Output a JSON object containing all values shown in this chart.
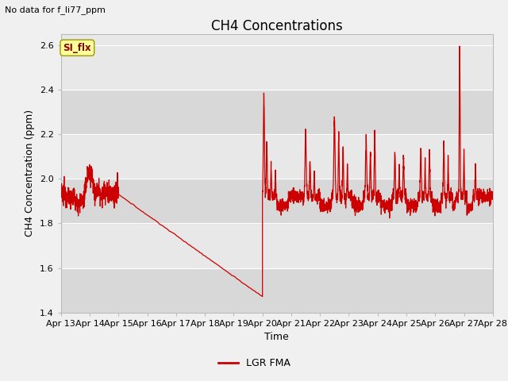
{
  "title": "CH4 Concentrations",
  "no_data_label": "No data for f_li77_ppm",
  "si_flx_label": "SI_flx",
  "xlabel": "Time",
  "ylabel": "CH4 Concentration (ppm)",
  "ylim": [
    1.4,
    2.65
  ],
  "yticks": [
    1.4,
    1.6,
    1.8,
    2.0,
    2.2,
    2.4,
    2.6
  ],
  "line_color": "#cc0000",
  "legend_label": "LGR FMA",
  "background_color": "#f0f0f0",
  "plot_bg_color": "#e8e8e8",
  "band_color": "#d8d8d8",
  "title_fontsize": 12,
  "axis_label_fontsize": 9,
  "tick_fontsize": 8,
  "x_start_day": 13,
  "x_end_day": 28,
  "x_ticks": [
    13,
    14,
    15,
    16,
    17,
    18,
    19,
    20,
    21,
    22,
    23,
    24,
    25,
    26,
    27,
    28
  ]
}
